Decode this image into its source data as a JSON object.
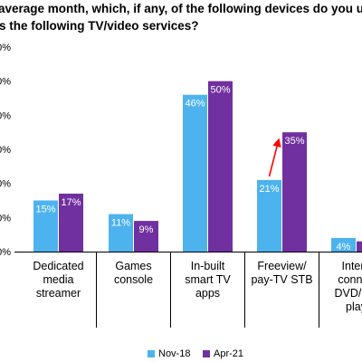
{
  "chart_data": {
    "type": "bar",
    "title_lines": [
      "average month, which, if any, of the following devices do you us",
      "s the following TV/video services?"
    ],
    "categories": [
      [
        "Dedicated",
        "media",
        "streamer"
      ],
      [
        "Games",
        "console"
      ],
      [
        "In-built",
        "smart TV",
        "apps"
      ],
      [
        "Freeview/",
        "pay-TV STB"
      ],
      [
        "Intern",
        "connec",
        "DVD/Blu",
        "play"
      ]
    ],
    "y_tick_labels": [
      "0%",
      "0%",
      "0%",
      "0%",
      "0%",
      "0%",
      "0%"
    ],
    "ylim": [
      0,
      60
    ],
    "grid": false,
    "legend_position": "bottom",
    "series": [
      {
        "name": "Nov-18",
        "color": "#4db3ee",
        "values": [
          15,
          11,
          46,
          21,
          4
        ],
        "labels": [
          "15%",
          "11%",
          "46%",
          "21%",
          "4%"
        ]
      },
      {
        "name": "Apr-21",
        "color": "#7030a0",
        "values": [
          17,
          9,
          50,
          35,
          3
        ],
        "labels": [
          "17%",
          "9%",
          "50%",
          "35%",
          ""
        ]
      }
    ],
    "annotation": {
      "type": "arrow",
      "color": "#ff0000",
      "from": {
        "category": 3,
        "series": 0
      },
      "to": {
        "category": 3,
        "series": 1
      }
    }
  }
}
